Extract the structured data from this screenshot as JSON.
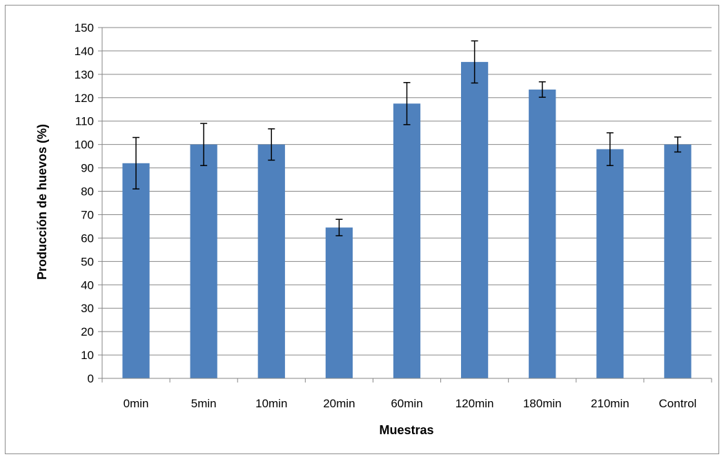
{
  "chart_data": {
    "type": "bar",
    "title": "",
    "xlabel": "Muestras",
    "ylabel": "Producción de huevos (%)",
    "ylim": [
      0,
      150
    ],
    "yticks": [
      0,
      10,
      20,
      30,
      40,
      50,
      60,
      70,
      80,
      90,
      100,
      110,
      120,
      130,
      140,
      150
    ],
    "grid": true,
    "legend": "none",
    "categories": [
      "0min",
      "5min",
      "10min",
      "20min",
      "60min",
      "120min",
      "180min",
      "210min",
      "Control"
    ],
    "values": [
      92,
      100,
      100,
      64.5,
      117.5,
      135.3,
      123.5,
      98,
      100
    ],
    "error": [
      11,
      9,
      6.7,
      3.5,
      9,
      9,
      3.3,
      7,
      3.2
    ],
    "bar_color": "#4f81bd",
    "gridline_color": "#868686",
    "errorbar_color": "#000000"
  }
}
